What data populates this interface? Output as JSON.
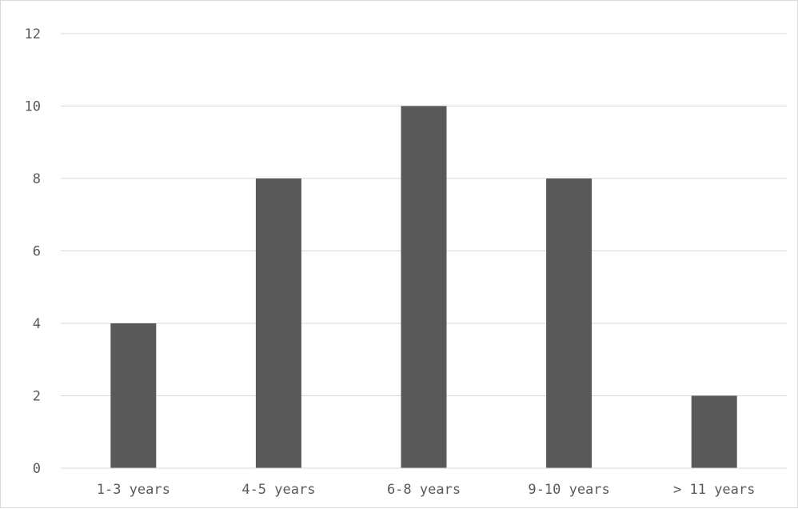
{
  "chart_data": {
    "type": "bar",
    "categories": [
      "1-3 years",
      "4-5 years",
      "6-8 years",
      "9-10 years",
      "> 11 years"
    ],
    "values": [
      4,
      8,
      10,
      8,
      2
    ],
    "ylim": [
      0,
      12
    ],
    "yticks": [
      0,
      2,
      4,
      6,
      8,
      10,
      12
    ],
    "grid": true,
    "legend": "none",
    "colors": {
      "bar": "#595959",
      "grid": "#d9d9d9",
      "axis": "#d9d9d9",
      "text": "#595959"
    }
  }
}
